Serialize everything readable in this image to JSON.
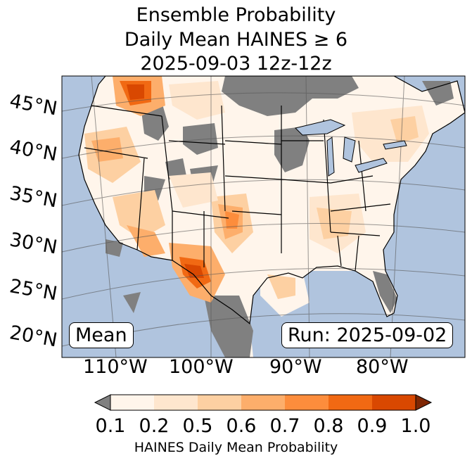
{
  "title": {
    "line1": "Ensemble Probability",
    "line2": "Daily Mean HAINES ≥ 6",
    "line3": "2025-09-03 12z-12z"
  },
  "map": {
    "ocean_color": "#b0c4de",
    "no_data_color": "#808080",
    "lat_labels": [
      "45°N",
      "40°N",
      "35°N",
      "30°N",
      "25°N",
      "20°N"
    ],
    "lon_labels": [
      "110°W",
      "100°W",
      "90°W",
      "80°W"
    ],
    "mean_label": "Mean",
    "run_label": "Run: 2025-09-02"
  },
  "colorbar": {
    "ticks": [
      "0.1",
      "0.2",
      "0.5",
      "0.6",
      "0.7",
      "0.8",
      "0.9",
      "1.0"
    ],
    "under_color": "#808080",
    "over_color": "#7f2704",
    "colors": [
      "#fff5eb",
      "#fee6ce",
      "#fdd0a2",
      "#fdae6b",
      "#fd8d3c",
      "#f16913",
      "#d94801"
    ],
    "label": "HAINES Daily Mean Probability"
  }
}
